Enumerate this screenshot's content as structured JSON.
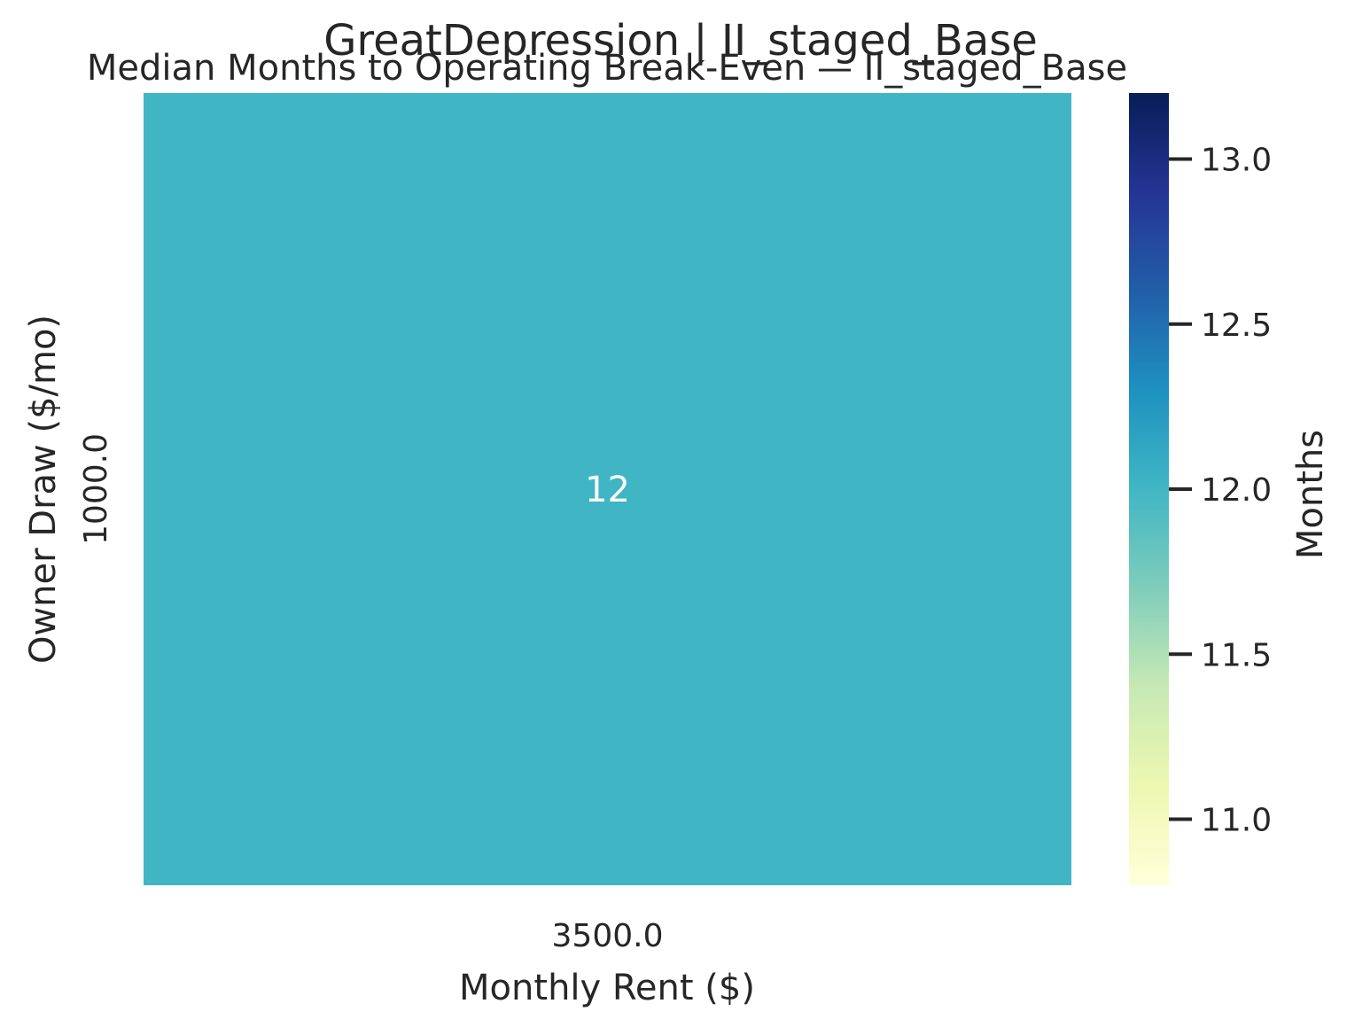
{
  "chart_data": {
    "type": "heatmap",
    "suptitle": "GreatDepression | II_staged_Base",
    "title": "Median Months to Operating Break-Even — II_staged_Base",
    "xlabel": "Monthly Rent ($)",
    "ylabel": "Owner Draw ($/mo)",
    "x_categories": [
      "3500.0"
    ],
    "y_categories": [
      "1000.0"
    ],
    "values": [
      [
        12
      ]
    ],
    "annotations": [
      [
        "12"
      ]
    ],
    "colormap": "YlGnBu",
    "cell_color": "#40b5c4",
    "annotation_color": "#ffffff",
    "colorbar": {
      "label": "Months",
      "range": [
        10.8,
        13.2
      ],
      "ticks": [
        11.0,
        11.5,
        12.0,
        12.5,
        13.0
      ],
      "tick_labels": [
        "11.0",
        "11.5",
        "12.0",
        "12.5",
        "13.0"
      ],
      "colors": [
        "#ffffd9",
        "#edf8b1",
        "#c7e9b4",
        "#7fcdbb",
        "#41b6c4",
        "#1d91c0",
        "#225ea8",
        "#253494",
        "#081d58"
      ]
    }
  }
}
